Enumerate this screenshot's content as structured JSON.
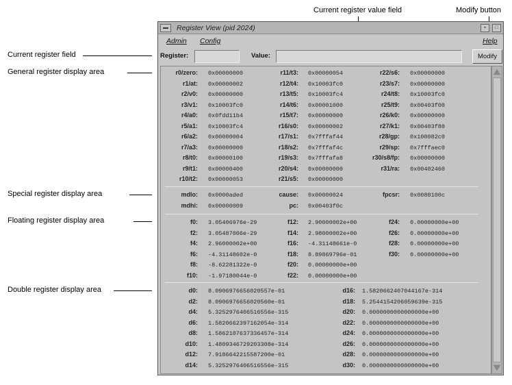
{
  "callouts": {
    "current_register_field": "Current register field",
    "general_area": "General register display area",
    "special_area": "Special register display area",
    "floating_area": "Floating register display area",
    "double_area": "Double register display area",
    "current_value_field": "Current register value field",
    "modify_button": "Modify button"
  },
  "window": {
    "title": "Register View (pid 2024)",
    "menus": [
      "Admin",
      "Config",
      "Help"
    ],
    "register_label": "Register:",
    "register_value": "",
    "value_label": "Value:",
    "value_value": "",
    "modify_label": "Modify"
  },
  "general": [
    [
      {
        "n": "r0/zero:",
        "v": "0x00000000"
      },
      {
        "n": "r11/t3:",
        "v": "0x00000054"
      },
      {
        "n": "r22/s6:",
        "v": "0x00000000"
      }
    ],
    [
      {
        "n": "r1/at:",
        "v": "0x00000002"
      },
      {
        "n": "r12/t4:",
        "v": "0x10003fc0"
      },
      {
        "n": "r23/s7:",
        "v": "0x00000000"
      }
    ],
    [
      {
        "n": "r2/v0:",
        "v": "0x00000000"
      },
      {
        "n": "r13/t5:",
        "v": "0x10003fc4"
      },
      {
        "n": "r24/t8:",
        "v": "0x10003fc0"
      }
    ],
    [
      {
        "n": "r3/v1:",
        "v": "0x10003fc0"
      },
      {
        "n": "r14/t6:",
        "v": "0x00001000"
      },
      {
        "n": "r25/t9:",
        "v": "0x00403f00"
      }
    ],
    [
      {
        "n": "r4/a0:",
        "v": "0x0fdd11b4"
      },
      {
        "n": "r15/t7:",
        "v": "0x00000000"
      },
      {
        "n": "r26/k0:",
        "v": "0x00000000"
      }
    ],
    [
      {
        "n": "r5/a1:",
        "v": "0x10003fc4"
      },
      {
        "n": "r16/s0:",
        "v": "0x00000002"
      },
      {
        "n": "r27/k1:",
        "v": "0x00403f80"
      }
    ],
    [
      {
        "n": "r6/a2:",
        "v": "0x00000004"
      },
      {
        "n": "r17/s1:",
        "v": "0x7fffaf44"
      },
      {
        "n": "r28/gp:",
        "v": "0x100082c0"
      }
    ],
    [
      {
        "n": "r7/a3:",
        "v": "0x00000000"
      },
      {
        "n": "r18/s2:",
        "v": "0x7fffaf4c"
      },
      {
        "n": "r29/sp:",
        "v": "0x7fffaec0"
      }
    ],
    [
      {
        "n": "r8/t0:",
        "v": "0x00000100"
      },
      {
        "n": "r19/s3:",
        "v": "0x7fffafa8"
      },
      {
        "n": "r30/s8/fp:",
        "v": "0x00000000"
      }
    ],
    [
      {
        "n": "r9/t1:",
        "v": "0x00000400"
      },
      {
        "n": "r20/s4:",
        "v": "0x00000000"
      },
      {
        "n": "r31/ra:",
        "v": "0x00402460"
      }
    ],
    [
      {
        "n": "r10/t2:",
        "v": "0x00000053"
      },
      {
        "n": "r21/s5:",
        "v": "0x00000000"
      },
      {
        "n": "",
        "v": ""
      }
    ]
  ],
  "special": [
    [
      {
        "n": "mdlo:",
        "v": "0x0000aded"
      },
      {
        "n": "cause:",
        "v": "0x00000024"
      },
      {
        "n": "fpcsr:",
        "v": "0x0080100c"
      }
    ],
    [
      {
        "n": "mdhi:",
        "v": "0x00000009"
      },
      {
        "n": "pc:",
        "v": "0x00403f0c"
      },
      {
        "n": "",
        "v": ""
      }
    ]
  ],
  "floating": [
    [
      {
        "n": "f0:",
        "v": "3.05406976e-29"
      },
      {
        "n": "f12:",
        "v": "2.90000002e+00"
      },
      {
        "n": "f24:",
        "v": "0.00000000e+00"
      }
    ],
    [
      {
        "n": "f2:",
        "v": "3.05487006e-29"
      },
      {
        "n": "f14:",
        "v": "2.98000002e+00"
      },
      {
        "n": "f26:",
        "v": "0.00000000e+00"
      }
    ],
    [
      {
        "n": "f4:",
        "v": "2.96000002e+00"
      },
      {
        "n": "f16:",
        "v": "-4.31148661e-0"
      },
      {
        "n": "f28:",
        "v": "0.00000000e+00"
      }
    ],
    [
      {
        "n": "f6:",
        "v": "-4.31148602e-0"
      },
      {
        "n": "f18:",
        "v": "8.89869796e-01"
      },
      {
        "n": "f30:",
        "v": "0.00000000e+00"
      }
    ],
    [
      {
        "n": "f8:",
        "v": "-8.62281322e-0"
      },
      {
        "n": "f20:",
        "v": "0.00000000e+00"
      },
      {
        "n": "",
        "v": ""
      }
    ],
    [
      {
        "n": "f10:",
        "v": "-1.97180044e-0"
      },
      {
        "n": "f22:",
        "v": "0.00000000e+00"
      },
      {
        "n": "",
        "v": ""
      }
    ]
  ],
  "double": [
    [
      {
        "n": "d0:",
        "v": "8.0906976656020557e-01"
      },
      {
        "n": "d16:",
        "v": "1.5820662407044167e-314"
      }
    ],
    [
      {
        "n": "d2:",
        "v": "8.0906976656020560e-01"
      },
      {
        "n": "d18:",
        "v": "5.2544154206059639e-315"
      }
    ],
    [
      {
        "n": "d4:",
        "v": "5.3252976406516556e-315"
      },
      {
        "n": "d20:",
        "v": "0.0000000000000000e+00"
      }
    ],
    [
      {
        "n": "d6:",
        "v": "1.5820662397162054e-314"
      },
      {
        "n": "d22:",
        "v": "0.0000000000000000e+00"
      }
    ],
    [
      {
        "n": "d8:",
        "v": "1.5862107637336457e-314"
      },
      {
        "n": "d24:",
        "v": "0.0000000000000000e+00"
      }
    ],
    [
      {
        "n": "d10:",
        "v": "1.4809346729203308e-314"
      },
      {
        "n": "d26:",
        "v": "0.0000000000000000e+00"
      }
    ],
    [
      {
        "n": "d12:",
        "v": "7.9186642215587200e-01"
      },
      {
        "n": "d28:",
        "v": "0.0000000000000000e+00"
      }
    ],
    [
      {
        "n": "d14:",
        "v": "5.3252976406516556e-315"
      },
      {
        "n": "d30:",
        "v": "0.0000000000000000e+00"
      }
    ]
  ]
}
